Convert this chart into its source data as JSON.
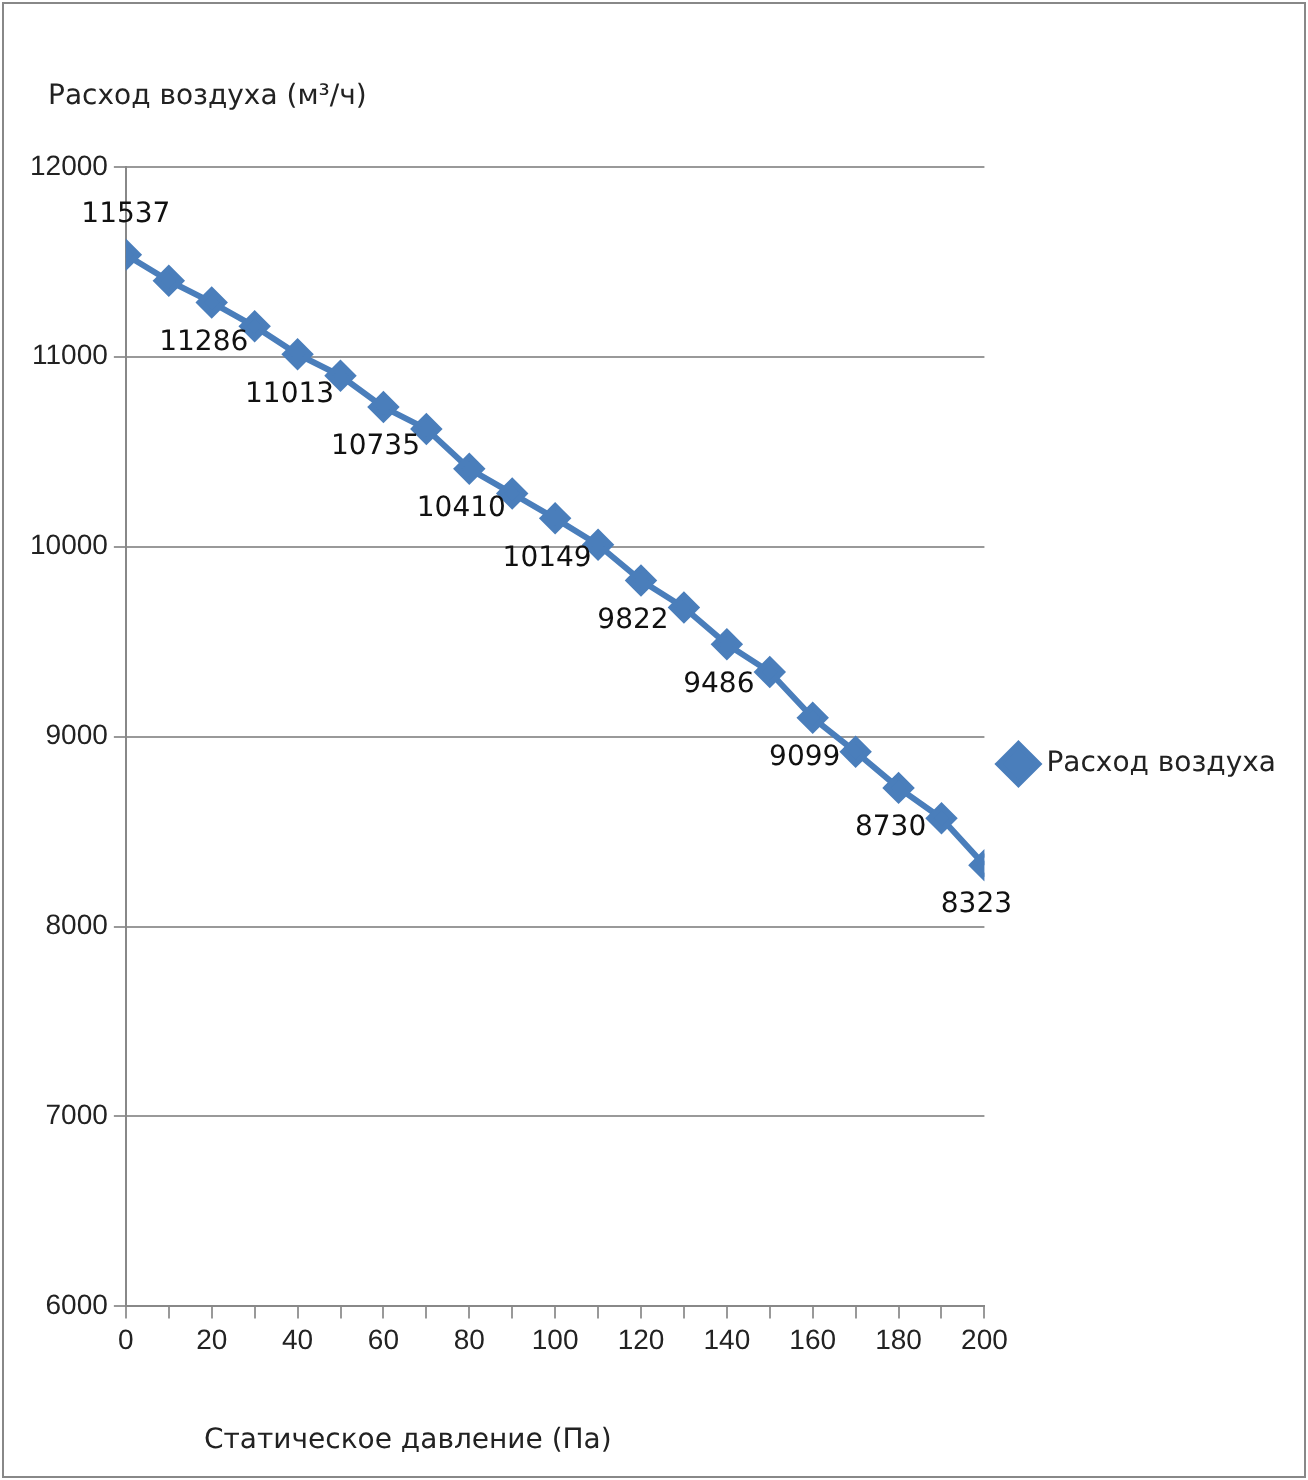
{
  "chart_data": {
    "type": "line",
    "ylabel": "Расход воздуха (м³/ч)",
    "xlabel": "Статическое давление (Па)",
    "x": [
      0,
      10,
      20,
      30,
      40,
      50,
      60,
      70,
      80,
      90,
      100,
      110,
      120,
      130,
      140,
      150,
      160,
      170,
      180,
      190,
      200
    ],
    "series": [
      {
        "name": "Расход воздуха",
        "color": "#4a7ebb",
        "values": [
          11537,
          11400,
          11286,
          11160,
          11013,
          10900,
          10735,
          10620,
          10410,
          10280,
          10149,
          10010,
          9822,
          9680,
          9486,
          9340,
          9099,
          8920,
          8730,
          8570,
          8323
        ],
        "value_labels": [
          "11537",
          null,
          "11286",
          null,
          "11013",
          null,
          "10735",
          null,
          "10410",
          null,
          "10149",
          null,
          "9822",
          null,
          "9486",
          null,
          "9099",
          null,
          "8730",
          null,
          "8323"
        ]
      }
    ],
    "xlim": [
      0,
      200
    ],
    "xticks": [
      0,
      {
        "value": 10,
        "label": null
      },
      20,
      {
        "value": 30,
        "label": null
      },
      40,
      {
        "value": 50,
        "label": null
      },
      60,
      {
        "value": 70,
        "label": null
      },
      80,
      {
        "value": 90,
        "label": null
      },
      100,
      {
        "value": 110,
        "label": null
      },
      120,
      {
        "value": 130,
        "label": null
      },
      140,
      {
        "value": 150,
        "label": null
      },
      160,
      {
        "value": 170,
        "label": null
      },
      180,
      {
        "value": 190,
        "label": null
      },
      200
    ],
    "ylim": [
      6000,
      12000
    ],
    "yticks": [
      6000,
      7000,
      8000,
      9000,
      10000,
      11000,
      12000
    ],
    "grid": "y",
    "legend": "right",
    "marker": "diamond",
    "line_style": "solid"
  }
}
